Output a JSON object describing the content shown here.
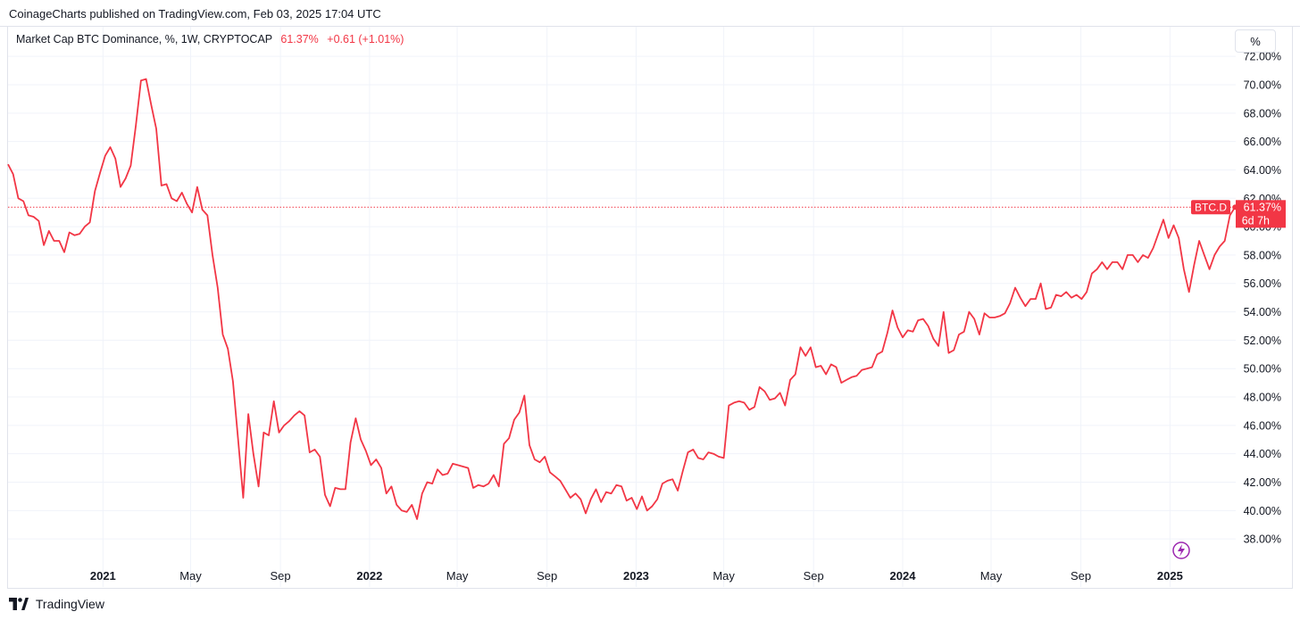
{
  "header": {
    "publish_text": "CoinageCharts published on TradingView.com, Feb 03, 2025 17:04 UTC"
  },
  "legend": {
    "symbol": "Market Cap BTC Dominance, %, 1W, CRYPTOCAP",
    "last_value": "61.37%",
    "change": "+0.61 (+1.01%)"
  },
  "scale_button": {
    "label": "%"
  },
  "price_label": {
    "ticker": "BTC.D",
    "value": "61.37%",
    "countdown": "6d 7h"
  },
  "footer": {
    "brand": "TradingView"
  },
  "colors": {
    "line": "#f23645",
    "grid": "#f0f3fa",
    "text": "#131722"
  },
  "chart_data": {
    "type": "line",
    "title": "",
    "xlabel": "",
    "ylabel": "",
    "x_ticks": [
      {
        "label": "2021",
        "date": "2021-01-01",
        "bold": true
      },
      {
        "label": "May",
        "date": "2021-05-01",
        "bold": false
      },
      {
        "label": "Sep",
        "date": "2021-09-01",
        "bold": false
      },
      {
        "label": "2022",
        "date": "2022-01-01",
        "bold": true
      },
      {
        "label": "May",
        "date": "2022-05-01",
        "bold": false
      },
      {
        "label": "Sep",
        "date": "2022-09-01",
        "bold": false
      },
      {
        "label": "2023",
        "date": "2023-01-01",
        "bold": true
      },
      {
        "label": "May",
        "date": "2023-05-01",
        "bold": false
      },
      {
        "label": "Sep",
        "date": "2023-09-01",
        "bold": false
      },
      {
        "label": "2024",
        "date": "2024-01-01",
        "bold": true
      },
      {
        "label": "May",
        "date": "2024-05-01",
        "bold": false
      },
      {
        "label": "Sep",
        "date": "2024-09-01",
        "bold": false
      },
      {
        "label": "2025",
        "date": "2025-01-01",
        "bold": true
      }
    ],
    "y_ticks": [
      "38.00%",
      "40.00%",
      "42.00%",
      "44.00%",
      "46.00%",
      "48.00%",
      "50.00%",
      "52.00%",
      "54.00%",
      "56.00%",
      "58.00%",
      "60.00%",
      "62.00%",
      "64.00%",
      "66.00%",
      "68.00%",
      "70.00%",
      "72.00%"
    ],
    "ylim": [
      36.5,
      72.2
    ],
    "xlim": [
      "2020-08-24",
      "2025-04-01"
    ],
    "grid": true,
    "current_value": 61.37,
    "series": [
      {
        "values": [
          [
            "2020-08-24",
            64.4
          ],
          [
            "2020-08-31",
            63.7
          ],
          [
            "2020-09-07",
            62.0
          ],
          [
            "2020-09-14",
            61.8
          ],
          [
            "2020-09-21",
            60.8
          ],
          [
            "2020-09-28",
            60.7
          ],
          [
            "2020-10-05",
            60.4
          ],
          [
            "2020-10-12",
            58.7
          ],
          [
            "2020-10-19",
            59.7
          ],
          [
            "2020-10-26",
            59.0
          ],
          [
            "2020-11-02",
            59.0
          ],
          [
            "2020-11-09",
            58.2
          ],
          [
            "2020-11-16",
            59.6
          ],
          [
            "2020-11-23",
            59.4
          ],
          [
            "2020-11-30",
            59.5
          ],
          [
            "2020-12-07",
            60.0
          ],
          [
            "2020-12-14",
            60.3
          ],
          [
            "2020-12-21",
            62.5
          ],
          [
            "2020-12-28",
            63.8
          ],
          [
            "2021-01-04",
            65.0
          ],
          [
            "2021-01-11",
            65.6
          ],
          [
            "2021-01-18",
            64.8
          ],
          [
            "2021-01-25",
            62.8
          ],
          [
            "2021-02-01",
            63.4
          ],
          [
            "2021-02-08",
            64.3
          ],
          [
            "2021-02-15",
            67.1
          ],
          [
            "2021-02-22",
            70.3
          ],
          [
            "2021-03-01",
            70.4
          ],
          [
            "2021-03-08",
            68.6
          ],
          [
            "2021-03-15",
            66.9
          ],
          [
            "2021-03-22",
            62.9
          ],
          [
            "2021-03-29",
            63.0
          ],
          [
            "2021-04-05",
            62.0
          ],
          [
            "2021-04-12",
            61.8
          ],
          [
            "2021-04-19",
            62.4
          ],
          [
            "2021-04-26",
            61.6
          ],
          [
            "2021-05-03",
            61.0
          ],
          [
            "2021-05-10",
            62.8
          ],
          [
            "2021-05-17",
            61.2
          ],
          [
            "2021-05-24",
            60.8
          ],
          [
            "2021-05-31",
            58.0
          ],
          [
            "2021-06-07",
            55.7
          ],
          [
            "2021-06-14",
            52.4
          ],
          [
            "2021-06-21",
            51.4
          ],
          [
            "2021-06-28",
            49.1
          ],
          [
            "2021-07-05",
            45.0
          ],
          [
            "2021-07-12",
            40.9
          ],
          [
            "2021-07-19",
            46.8
          ],
          [
            "2021-07-26",
            44.0
          ],
          [
            "2021-08-02",
            41.7
          ],
          [
            "2021-08-09",
            45.5
          ],
          [
            "2021-08-16",
            45.3
          ],
          [
            "2021-08-23",
            47.7
          ],
          [
            "2021-08-30",
            45.5
          ],
          [
            "2021-09-06",
            46.0
          ],
          [
            "2021-09-13",
            46.3
          ],
          [
            "2021-09-20",
            46.7
          ],
          [
            "2021-09-27",
            47.0
          ],
          [
            "2021-10-04",
            46.7
          ],
          [
            "2021-10-11",
            44.1
          ],
          [
            "2021-10-18",
            44.3
          ],
          [
            "2021-10-25",
            43.8
          ],
          [
            "2021-11-01",
            41.1
          ],
          [
            "2021-11-08",
            40.3
          ],
          [
            "2021-11-15",
            41.6
          ],
          [
            "2021-11-22",
            41.5
          ],
          [
            "2021-11-29",
            41.5
          ],
          [
            "2021-12-06",
            44.8
          ],
          [
            "2021-12-13",
            46.5
          ],
          [
            "2021-12-20",
            45.0
          ],
          [
            "2021-12-27",
            44.2
          ],
          [
            "2022-01-03",
            43.2
          ],
          [
            "2022-01-10",
            43.6
          ],
          [
            "2022-01-17",
            43.0
          ],
          [
            "2022-01-24",
            41.2
          ],
          [
            "2022-01-31",
            41.7
          ],
          [
            "2022-02-07",
            40.4
          ],
          [
            "2022-02-14",
            40.0
          ],
          [
            "2022-02-21",
            39.9
          ],
          [
            "2022-02-28",
            40.4
          ],
          [
            "2022-03-07",
            39.4
          ],
          [
            "2022-03-14",
            41.2
          ],
          [
            "2022-03-21",
            42.0
          ],
          [
            "2022-03-28",
            41.9
          ],
          [
            "2022-04-04",
            42.9
          ],
          [
            "2022-04-11",
            42.5
          ],
          [
            "2022-04-18",
            42.6
          ],
          [
            "2022-04-25",
            43.3
          ],
          [
            "2022-05-02",
            43.2
          ],
          [
            "2022-05-09",
            43.1
          ],
          [
            "2022-05-16",
            43.0
          ],
          [
            "2022-05-23",
            41.6
          ],
          [
            "2022-05-30",
            41.8
          ],
          [
            "2022-06-06",
            41.7
          ],
          [
            "2022-06-13",
            41.9
          ],
          [
            "2022-06-20",
            42.5
          ],
          [
            "2022-06-27",
            41.7
          ],
          [
            "2022-07-04",
            44.7
          ],
          [
            "2022-07-11",
            45.1
          ],
          [
            "2022-07-18",
            46.4
          ],
          [
            "2022-07-25",
            46.9
          ],
          [
            "2022-08-01",
            48.1
          ],
          [
            "2022-08-08",
            44.6
          ],
          [
            "2022-08-15",
            43.6
          ],
          [
            "2022-08-22",
            43.4
          ],
          [
            "2022-08-29",
            43.8
          ],
          [
            "2022-09-05",
            42.7
          ],
          [
            "2022-09-12",
            42.4
          ],
          [
            "2022-09-19",
            42.1
          ],
          [
            "2022-09-26",
            41.5
          ],
          [
            "2022-10-03",
            40.9
          ],
          [
            "2022-10-10",
            41.2
          ],
          [
            "2022-10-17",
            40.8
          ],
          [
            "2022-10-24",
            39.8
          ],
          [
            "2022-10-31",
            40.8
          ],
          [
            "2022-11-07",
            41.5
          ],
          [
            "2022-11-14",
            40.6
          ],
          [
            "2022-11-21",
            41.3
          ],
          [
            "2022-11-28",
            41.2
          ],
          [
            "2022-12-05",
            41.8
          ],
          [
            "2022-12-12",
            41.7
          ],
          [
            "2022-12-19",
            40.7
          ],
          [
            "2022-12-26",
            40.9
          ],
          [
            "2023-01-02",
            40.1
          ],
          [
            "2023-01-09",
            41.0
          ],
          [
            "2023-01-16",
            40.0
          ],
          [
            "2023-01-23",
            40.3
          ],
          [
            "2023-01-30",
            40.8
          ],
          [
            "2023-02-06",
            41.9
          ],
          [
            "2023-02-13",
            42.1
          ],
          [
            "2023-02-20",
            42.2
          ],
          [
            "2023-02-27",
            41.4
          ],
          [
            "2023-03-06",
            42.8
          ],
          [
            "2023-03-13",
            44.1
          ],
          [
            "2023-03-20",
            44.3
          ],
          [
            "2023-03-27",
            43.7
          ],
          [
            "2023-04-03",
            43.6
          ],
          [
            "2023-04-10",
            44.1
          ],
          [
            "2023-04-17",
            44.0
          ],
          [
            "2023-04-24",
            43.8
          ],
          [
            "2023-05-01",
            43.7
          ],
          [
            "2023-05-08",
            47.4
          ],
          [
            "2023-05-15",
            47.6
          ],
          [
            "2023-05-22",
            47.7
          ],
          [
            "2023-05-29",
            47.6
          ],
          [
            "2023-06-05",
            47.1
          ],
          [
            "2023-06-12",
            47.3
          ],
          [
            "2023-06-19",
            48.7
          ],
          [
            "2023-06-26",
            48.4
          ],
          [
            "2023-07-03",
            47.8
          ],
          [
            "2023-07-10",
            47.9
          ],
          [
            "2023-07-17",
            48.3
          ],
          [
            "2023-07-24",
            47.4
          ],
          [
            "2023-07-31",
            49.2
          ],
          [
            "2023-08-07",
            49.6
          ],
          [
            "2023-08-14",
            51.5
          ],
          [
            "2023-08-21",
            50.9
          ],
          [
            "2023-08-28",
            51.5
          ],
          [
            "2023-09-04",
            50.1
          ],
          [
            "2023-09-11",
            50.2
          ],
          [
            "2023-09-18",
            49.6
          ],
          [
            "2023-09-25",
            50.3
          ],
          [
            "2023-10-02",
            50.1
          ],
          [
            "2023-10-09",
            49.0
          ],
          [
            "2023-10-16",
            49.2
          ],
          [
            "2023-10-23",
            49.4
          ],
          [
            "2023-10-30",
            49.5
          ],
          [
            "2023-11-06",
            49.9
          ],
          [
            "2023-11-13",
            50.0
          ],
          [
            "2023-11-20",
            50.1
          ],
          [
            "2023-11-27",
            51.0
          ],
          [
            "2023-12-04",
            51.2
          ],
          [
            "2023-12-11",
            52.5
          ],
          [
            "2023-12-18",
            54.1
          ],
          [
            "2023-12-25",
            52.9
          ],
          [
            "2024-01-01",
            52.2
          ],
          [
            "2024-01-08",
            52.7
          ],
          [
            "2024-01-15",
            52.6
          ],
          [
            "2024-01-22",
            53.4
          ],
          [
            "2024-01-29",
            53.5
          ],
          [
            "2024-02-05",
            53.0
          ],
          [
            "2024-02-12",
            52.1
          ],
          [
            "2024-02-19",
            51.6
          ],
          [
            "2024-02-26",
            54.0
          ],
          [
            "2024-03-04",
            51.1
          ],
          [
            "2024-03-11",
            51.3
          ],
          [
            "2024-03-18",
            52.4
          ],
          [
            "2024-03-25",
            52.6
          ],
          [
            "2024-04-01",
            54.0
          ],
          [
            "2024-04-08",
            53.5
          ],
          [
            "2024-04-15",
            52.4
          ],
          [
            "2024-04-22",
            53.9
          ],
          [
            "2024-04-29",
            53.6
          ],
          [
            "2024-05-06",
            53.6
          ],
          [
            "2024-05-13",
            53.7
          ],
          [
            "2024-05-20",
            53.9
          ],
          [
            "2024-05-27",
            54.6
          ],
          [
            "2024-06-03",
            55.7
          ],
          [
            "2024-06-10",
            55.0
          ],
          [
            "2024-06-17",
            54.4
          ],
          [
            "2024-06-24",
            54.9
          ],
          [
            "2024-07-01",
            54.9
          ],
          [
            "2024-07-08",
            56.0
          ],
          [
            "2024-07-15",
            54.2
          ],
          [
            "2024-07-22",
            54.3
          ],
          [
            "2024-07-29",
            55.2
          ],
          [
            "2024-08-05",
            55.1
          ],
          [
            "2024-08-12",
            55.4
          ],
          [
            "2024-08-19",
            55.0
          ],
          [
            "2024-08-26",
            55.2
          ],
          [
            "2024-09-02",
            54.9
          ],
          [
            "2024-09-09",
            55.4
          ],
          [
            "2024-09-16",
            56.7
          ],
          [
            "2024-09-23",
            57.0
          ],
          [
            "2024-09-30",
            57.5
          ],
          [
            "2024-10-07",
            57.0
          ],
          [
            "2024-10-14",
            57.5
          ],
          [
            "2024-10-21",
            57.5
          ],
          [
            "2024-10-28",
            57.0
          ],
          [
            "2024-11-04",
            58.0
          ],
          [
            "2024-11-11",
            58.0
          ],
          [
            "2024-11-18",
            57.5
          ],
          [
            "2024-11-25",
            58.0
          ],
          [
            "2024-12-02",
            57.8
          ],
          [
            "2024-12-09",
            58.5
          ],
          [
            "2024-12-16",
            59.5
          ],
          [
            "2024-12-23",
            60.5
          ],
          [
            "2024-12-30",
            59.2
          ],
          [
            "2025-01-06",
            60.1
          ],
          [
            "2025-01-13",
            59.2
          ],
          [
            "2025-01-20",
            57.0
          ],
          [
            "2025-01-27",
            55.4
          ],
          [
            "2025-02-03",
            57.3
          ],
          [
            "2025-02-10",
            59.0
          ],
          [
            "2025-02-17",
            58.0
          ],
          [
            "2025-02-24",
            57.0
          ],
          [
            "2025-03-03",
            58.0
          ],
          [
            "2025-03-10",
            58.6
          ],
          [
            "2025-03-17",
            59.0
          ],
          [
            "2025-03-24",
            60.8
          ],
          [
            "2025-03-31",
            61.37
          ]
        ]
      }
    ]
  }
}
